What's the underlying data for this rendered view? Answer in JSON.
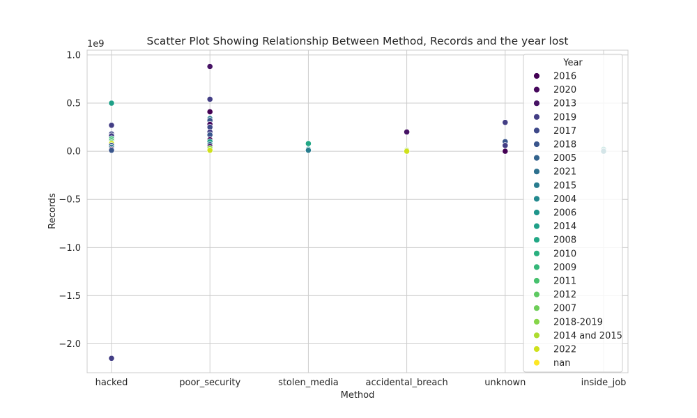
{
  "chart_data": {
    "type": "scatter",
    "title": "Scatter Plot Showing Relationship Between Method, Records and the year lost",
    "xlabel": "Method",
    "ylabel": "Records",
    "y_multiplier": "1e9",
    "categories": [
      "hacked",
      "poor_security",
      "stolen_media",
      "accidental_breach",
      "unknown",
      "inside_job"
    ],
    "ylim": [
      -2.3,
      1.05
    ],
    "yticks": [
      1.0,
      0.5,
      0.0,
      -0.5,
      -1.0,
      -1.5,
      -2.0
    ],
    "ytick_labels": [
      "1.0",
      "0.5",
      "0.0",
      "−0.5",
      "−1.0",
      "−1.5",
      "−2.0"
    ],
    "grid": true,
    "legend": {
      "title": "Year",
      "placement": "upper-right",
      "entries": [
        {
          "label": "2016",
          "color": "#440154"
        },
        {
          "label": "2020",
          "color": "#46085c"
        },
        {
          "label": "2013",
          "color": "#471365"
        },
        {
          "label": "2019",
          "color": "#433e85"
        },
        {
          "label": "2017",
          "color": "#3e4989"
        },
        {
          "label": "2018",
          "color": "#39558c"
        },
        {
          "label": "2005",
          "color": "#33638d"
        },
        {
          "label": "2021",
          "color": "#2d708e"
        },
        {
          "label": "2015",
          "color": "#287c8e"
        },
        {
          "label": "2004",
          "color": "#23898e"
        },
        {
          "label": "2006",
          "color": "#1f958b"
        },
        {
          "label": "2014",
          "color": "#1fa088"
        },
        {
          "label": "2008",
          "color": "#22a785"
        },
        {
          "label": "2010",
          "color": "#2ab07f"
        },
        {
          "label": "2009",
          "color": "#35b779"
        },
        {
          "label": "2011",
          "color": "#47c16e"
        },
        {
          "label": "2012",
          "color": "#5ec962"
        },
        {
          "label": "2007",
          "color": "#6ece58"
        },
        {
          "label": "2018-2019",
          "color": "#86d549"
        },
        {
          "label": "2014 and 2015",
          "color": "#addc30"
        },
        {
          "label": "2022",
          "color": "#cfe11c"
        },
        {
          "label": "nan",
          "color": "#fde725"
        }
      ]
    },
    "points": [
      {
        "method": "hacked",
        "year": "2019",
        "value": 0.27
      },
      {
        "method": "hacked",
        "year": "2014",
        "value": 0.5
      },
      {
        "method": "hacked",
        "year": "2017",
        "value": 0.18
      },
      {
        "method": "hacked",
        "year": "2019",
        "value": 0.16
      },
      {
        "method": "hacked",
        "year": "2009",
        "value": 0.13
      },
      {
        "method": "hacked",
        "year": "2011",
        "value": 0.11
      },
      {
        "method": "hacked",
        "year": "2012",
        "value": 0.09
      },
      {
        "method": "hacked",
        "year": "2022",
        "value": 0.08
      },
      {
        "method": "hacked",
        "year": "2018",
        "value": 0.06
      },
      {
        "method": "hacked",
        "year": "2015",
        "value": 0.04
      },
      {
        "method": "hacked",
        "year": "2016",
        "value": 0.02
      },
      {
        "method": "hacked",
        "year": "2018",
        "value": 0.01
      },
      {
        "method": "hacked",
        "year": "2019",
        "value": -2.15
      },
      {
        "method": "poor_security",
        "year": "2013",
        "value": 0.88
      },
      {
        "method": "poor_security",
        "year": "2019",
        "value": 0.54
      },
      {
        "method": "poor_security",
        "year": "2016",
        "value": 0.41
      },
      {
        "method": "poor_security",
        "year": "2015",
        "value": 0.34
      },
      {
        "method": "poor_security",
        "year": "2018",
        "value": 0.32
      },
      {
        "method": "poor_security",
        "year": "2020",
        "value": 0.28
      },
      {
        "method": "poor_security",
        "year": "2017",
        "value": 0.25
      },
      {
        "method": "poor_security",
        "year": "2019",
        "value": 0.2
      },
      {
        "method": "poor_security",
        "year": "2018",
        "value": 0.17
      },
      {
        "method": "poor_security",
        "year": "2016",
        "value": 0.12
      },
      {
        "method": "poor_security",
        "year": "2014",
        "value": 0.1
      },
      {
        "method": "poor_security",
        "year": "2021",
        "value": 0.07
      },
      {
        "method": "poor_security",
        "year": "2013",
        "value": 0.05
      },
      {
        "method": "poor_security",
        "year": "2018-2019",
        "value": 0.03
      },
      {
        "method": "poor_security",
        "year": "2022",
        "value": 0.01
      },
      {
        "method": "stolen_media",
        "year": "2008",
        "value": 0.08
      },
      {
        "method": "stolen_media",
        "year": "2006",
        "value": 0.02
      },
      {
        "method": "stolen_media",
        "year": "2015",
        "value": 0.01
      },
      {
        "method": "accidental_breach",
        "year": "2013",
        "value": 0.2
      },
      {
        "method": "accidental_breach",
        "year": "2018-2019",
        "value": 0.01
      },
      {
        "method": "accidental_breach",
        "year": "2022",
        "value": 0.0
      },
      {
        "method": "unknown",
        "year": "2019",
        "value": 0.3
      },
      {
        "method": "unknown",
        "year": "2018",
        "value": 0.1
      },
      {
        "method": "unknown",
        "year": "2019",
        "value": 0.06
      },
      {
        "method": "unknown",
        "year": "2016",
        "value": 0.0
      },
      {
        "method": "inside_job",
        "year": "2006",
        "value": 0.02
      },
      {
        "method": "inside_job",
        "year": "2015",
        "value": 0.0
      }
    ]
  }
}
